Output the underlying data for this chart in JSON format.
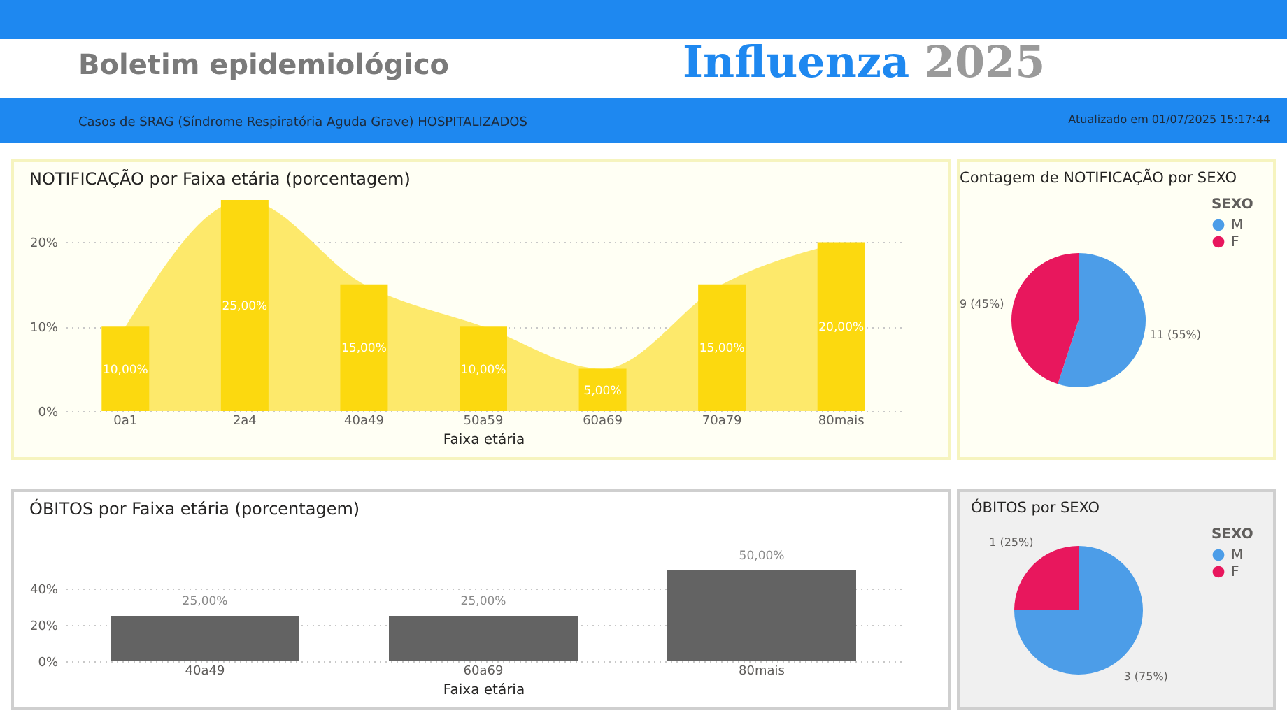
{
  "chart_data": [
    {
      "type": "other",
      "title": "Boletim epidemiológico",
      "subtitle": "Casos de SRAG (Síndrome Respiratória Aguda Grave) HOSPITALIZADOS",
      "annotations": [
        "Influenza",
        "2025",
        "Atualizado em 01/07/2025 15:17:44"
      ]
    },
    {
      "type": "bar",
      "title": "NOTIFICAÇÃO por Faixa etária (porcentagem)",
      "xlabel": "Faixa etária",
      "categories": [
        "0a1",
        "2a4",
        "40a49",
        "50a59",
        "60a69",
        "70a79",
        "80mais"
      ],
      "series": [
        {
          "type": "area",
          "color": "#fde96b",
          "values": [
            10,
            25,
            15,
            10,
            5,
            15,
            20
          ]
        },
        {
          "type": "bar",
          "color": "#fcd90f",
          "values": [
            10,
            25,
            15,
            10,
            5,
            15,
            20
          ],
          "value_labels": [
            "10,00%",
            "25,00%",
            "15,00%",
            "10,00%",
            "5,00%",
            "15,00%",
            "20,00%"
          ]
        }
      ],
      "ylim": [
        0,
        25
      ],
      "yticks": [
        {
          "value": 0,
          "label": "0%"
        },
        {
          "value": 10,
          "label": "10%"
        },
        {
          "value": 20,
          "label": "20%"
        }
      ],
      "grid": "y"
    },
    {
      "type": "pie",
      "title": "Contagem de NOTIFICAÇÃO por SEXO",
      "categories": [
        "M",
        "F"
      ],
      "values": [
        11,
        9
      ],
      "colors": [
        "#4c9de8",
        "#e8175d"
      ],
      "value_labels": [
        "11 (55%)",
        "9 (45%)"
      ],
      "legend_title": "SEXO",
      "legend": "right"
    },
    {
      "type": "bar",
      "title": "ÓBITOS por Faixa etária (porcentagem)",
      "xlabel": "Faixa etária",
      "categories": [
        "40a49",
        "60a69",
        "80mais"
      ],
      "series": [
        {
          "type": "bar",
          "color": "#636363",
          "values": [
            25,
            25,
            50
          ],
          "value_labels": [
            "25,00%",
            "25,00%",
            "50,00%"
          ]
        }
      ],
      "ylim": [
        0,
        50
      ],
      "yticks": [
        {
          "value": 0,
          "label": "0%"
        },
        {
          "value": 20,
          "label": "20%"
        },
        {
          "value": 40,
          "label": "40%"
        }
      ],
      "grid": "y"
    },
    {
      "type": "pie",
      "title": "ÓBITOS por SEXO",
      "categories": [
        "M",
        "F"
      ],
      "values": [
        3,
        1
      ],
      "colors": [
        "#4c9de8",
        "#e8175d"
      ],
      "value_labels": [
        "3 (75%)",
        "1 (25%)"
      ],
      "legend_title": "SEXO",
      "legend": "right"
    }
  ]
}
